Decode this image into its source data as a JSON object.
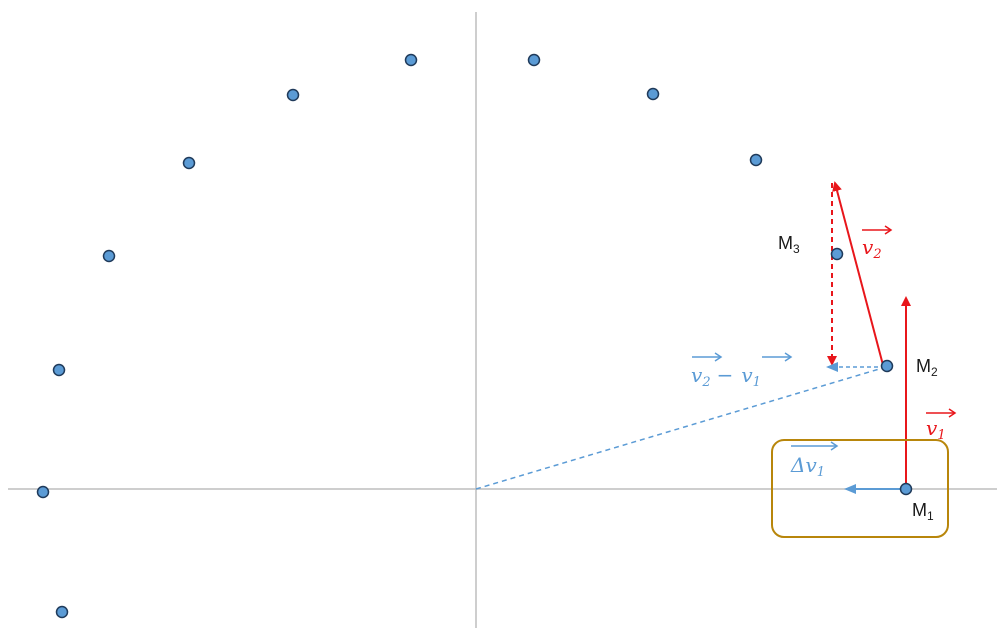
{
  "colors": {
    "axis": "#bdbdbd",
    "dot_fill": "#5b9bd5",
    "dot_stroke": "#1f3a5a",
    "red": "#e8161b",
    "blue": "#5b9bd5",
    "frame": "#b8860b"
  },
  "diagram": {
    "point_labels": {
      "m1": {
        "base": "M",
        "sub": "1"
      },
      "m2": {
        "base": "M",
        "sub": "2"
      },
      "m3": {
        "base": "M",
        "sub": "3"
      }
    },
    "vector_labels": {
      "v1": {
        "letter": "v",
        "sub": "1"
      },
      "v2": {
        "letter": "v",
        "sub": "2"
      },
      "dv1": {
        "letter": "Δv",
        "sub": "1"
      },
      "diff": {
        "minus": "−",
        "a": {
          "letter": "v",
          "sub": "2"
        },
        "b": {
          "letter": "v",
          "sub": "1"
        }
      }
    }
  }
}
